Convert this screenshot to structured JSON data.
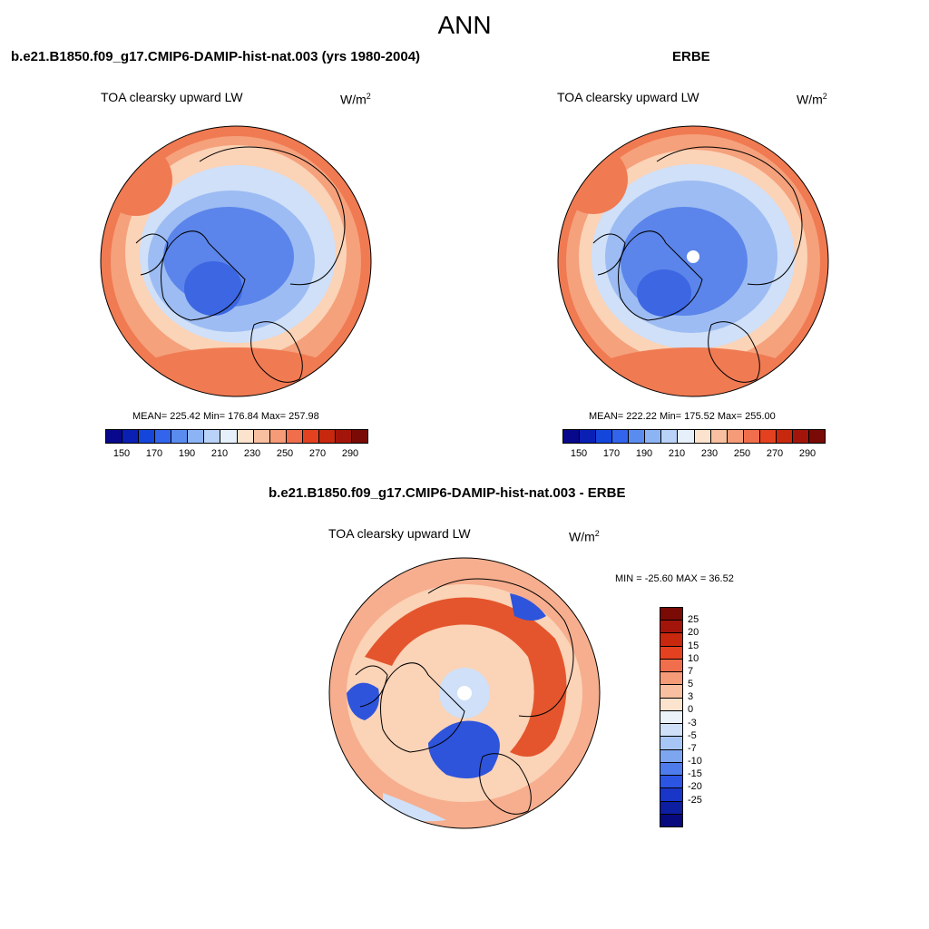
{
  "main_title": "ANN",
  "panels": [
    {
      "title": "b.e21.B1850.f09_g17.CMIP6-DAMIP-hist-nat.003 (yrs 1980-2004)",
      "variable": "TOA clearsky upward LW",
      "units_base": "W/m",
      "units_exp": "2",
      "stats": "MEAN= 225.42  Min= 176.84  Max= 257.98"
    },
    {
      "title": "ERBE",
      "variable": "TOA clearsky upward LW",
      "units_base": "W/m",
      "units_exp": "2",
      "stats": "MEAN= 222.22  Min= 175.52  Max= 255.00"
    },
    {
      "title": "b.e21.B1850.f09_g17.CMIP6-DAMIP-hist-nat.003 - ERBE",
      "variable": "TOA clearsky upward LW",
      "units_base": "W/m",
      "units_exp": "2",
      "stats": "MIN = -25.60 MAX =  36.52"
    }
  ],
  "colorbar_abs": {
    "colors": [
      "#08088c",
      "#0a1fb4",
      "#1446dc",
      "#3264ec",
      "#5a8cf0",
      "#8cb4f5",
      "#b9d2f7",
      "#e6f0fa",
      "#fbe3cd",
      "#f8c0a0",
      "#f59b78",
      "#f06e4b",
      "#e44120",
      "#c8280d",
      "#a3150a",
      "#7a0a05"
    ],
    "tick_labels": [
      "150",
      "170",
      "190",
      "210",
      "230",
      "250",
      "270",
      "290"
    ]
  },
  "colorbar_diff": {
    "colors": [
      "#7a0a05",
      "#a3150a",
      "#c8280d",
      "#e44120",
      "#f06e4b",
      "#f59b78",
      "#f8c0a0",
      "#fbe3cd",
      "#ebf2fa",
      "#cfe0f8",
      "#a8c6f5",
      "#7ea6f0",
      "#4f7cec",
      "#2c55e4",
      "#1a36c8",
      "#0d1ea0",
      "#060a7c"
    ],
    "labels": [
      "25",
      "20",
      "15",
      "10",
      "7",
      "5",
      "3",
      "0",
      "-3",
      "-5",
      "-7",
      "-10",
      "-15",
      "-20",
      "-25"
    ]
  },
  "map_colors": {
    "warm_edge": "#f07a52",
    "warm_mid": "#f5a17c",
    "warm_light": "#fbd3b7",
    "cool_light": "#cfe0f8",
    "cool_mid": "#9dbcf3",
    "cool_deep": "#5b85ea",
    "cool_core": "#3c66e2",
    "diff_red": "#e4552d",
    "diff_salmon": "#f6ae8e",
    "diff_blue": "#2e54dc"
  }
}
